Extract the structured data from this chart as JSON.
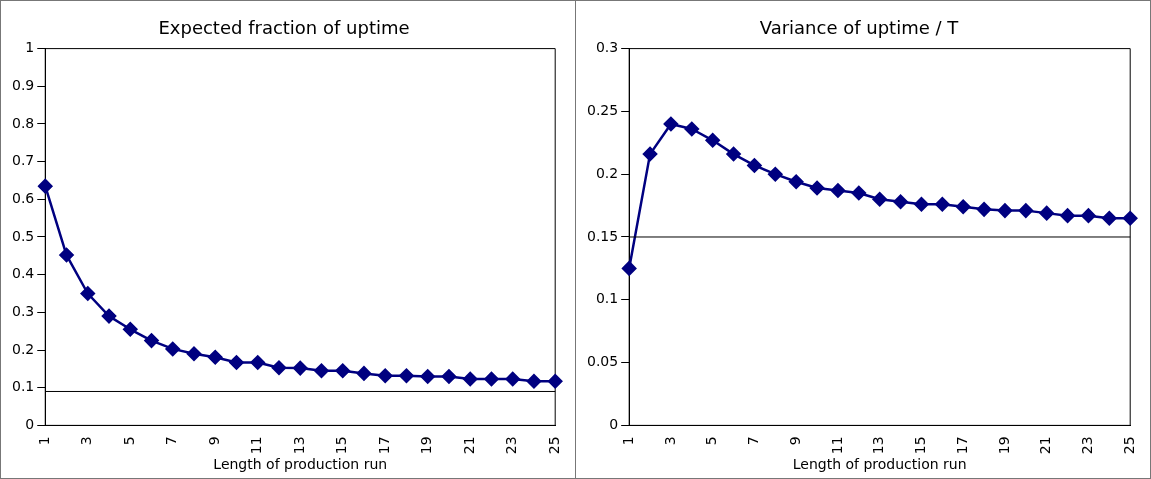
{
  "chart_data": [
    {
      "type": "line",
      "title": "Expected fraction of uptime",
      "xlabel": "Length of production run",
      "categories": [
        "1",
        null,
        "3",
        null,
        "5",
        null,
        "7",
        null,
        "9",
        null,
        "11",
        null,
        "13",
        null,
        "15",
        null,
        "17",
        null,
        "19",
        null,
        "21",
        null,
        "23",
        null,
        "25"
      ],
      "series": [
        {
          "color": "#000080",
          "values": [
            0.635,
            0.452,
            0.35,
            0.29,
            0.255,
            0.225,
            0.203,
            0.19,
            0.181,
            0.167,
            0.167,
            0.153,
            0.152,
            0.145,
            0.145,
            0.138,
            0.132,
            0.132,
            0.13,
            0.13,
            0.123,
            0.123,
            0.123,
            0.117,
            0.117
          ]
        }
      ],
      "ylim": [
        0,
        1
      ],
      "yticks": [
        0,
        0.1,
        0.2,
        0.3,
        0.4,
        0.5,
        0.6,
        0.7,
        0.8,
        0.9,
        1
      ],
      "ref_lines": [
        {
          "axis": "y",
          "value": 0.09,
          "color": "#000000"
        }
      ],
      "grid": false,
      "legend": false,
      "marker": "diamond",
      "line_style": "solid"
    },
    {
      "type": "line",
      "title": "Variance of uptime / T",
      "xlabel": "Length of production run",
      "categories": [
        "1",
        null,
        "3",
        null,
        "5",
        null,
        "7",
        null,
        "9",
        null,
        "11",
        null,
        "13",
        null,
        "15",
        null,
        "17",
        null,
        "19",
        null,
        "21",
        null,
        "23",
        null,
        "25"
      ],
      "series": [
        {
          "color": "#000080",
          "values": [
            0.125,
            0.216,
            0.24,
            0.236,
            0.227,
            0.216,
            0.207,
            0.2,
            0.194,
            0.189,
            0.187,
            0.185,
            0.18,
            0.178,
            0.176,
            0.176,
            0.174,
            0.172,
            0.171,
            0.171,
            0.169,
            0.167,
            0.167,
            0.165,
            0.165
          ]
        }
      ],
      "ylim": [
        0,
        0.3
      ],
      "yticks": [
        0,
        0.05,
        0.1,
        0.15,
        0.2,
        0.25,
        0.3
      ],
      "ref_lines": [
        {
          "axis": "y",
          "value": 0.15,
          "color": "#000000"
        }
      ],
      "grid": false,
      "legend": false,
      "marker": "diamond",
      "line_style": "solid"
    }
  ]
}
